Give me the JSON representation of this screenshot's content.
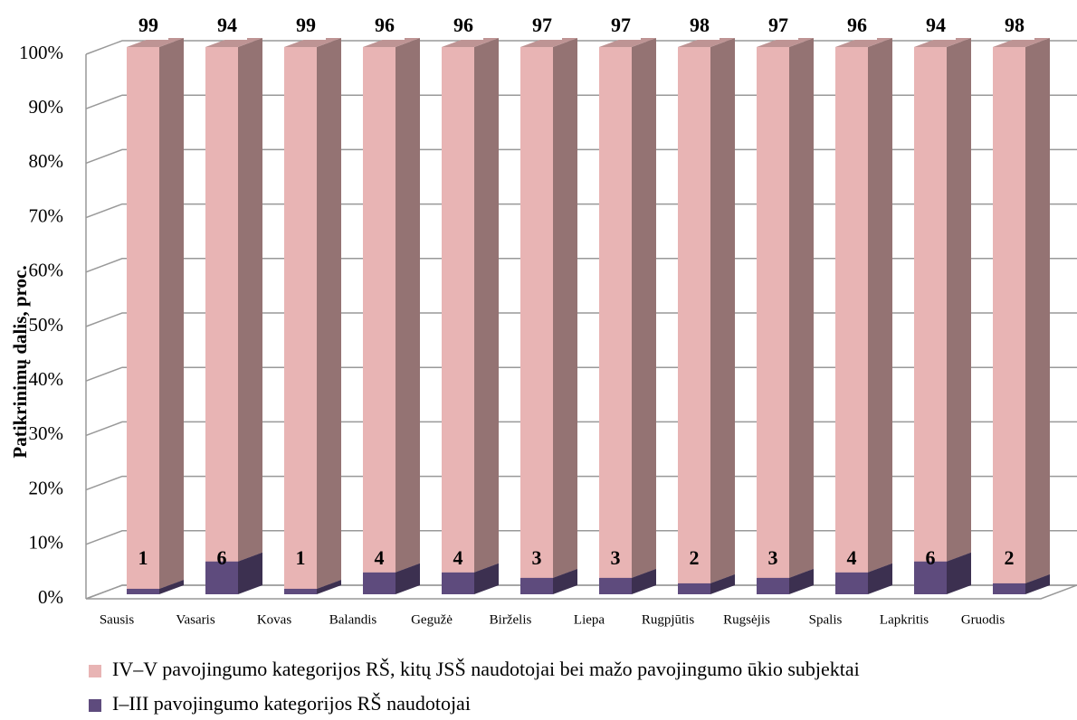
{
  "chart_data": {
    "type": "bar3d_stacked",
    "y_label": "Patikrinimų dalis, proc.",
    "categories": [
      "Sausis",
      "Vasaris",
      "Kovas",
      "Balandis",
      "Gegužė",
      "Birželis",
      "Liepa",
      "Rugpjūtis",
      "Rugsėjis",
      "Spalis",
      "Lapkritis",
      "Gruodis"
    ],
    "series": [
      {
        "name": "I–III pavojingumo kategorijos RŠ naudotojai",
        "color": "#5e4b7d",
        "values": [
          1,
          6,
          1,
          4,
          4,
          3,
          3,
          2,
          3,
          4,
          6,
          2
        ]
      },
      {
        "name": "IV–V pavojingumo kategorijos RŠ, kitų JSŠ naudotojai bei mažo pavojingumo ūkio subjektai",
        "color": "#e8b4b4",
        "values": [
          99,
          94,
          99,
          96,
          96,
          97,
          97,
          98,
          97,
          96,
          94,
          98
        ]
      }
    ],
    "legend": "bottom",
    "ylim": [
      0,
      100
    ],
    "yticks": [
      {
        "value": 0,
        "label": "0%"
      },
      {
        "value": 10,
        "label": "10%"
      },
      {
        "value": 20,
        "label": "20%"
      },
      {
        "value": 30,
        "label": "30%"
      },
      {
        "value": 40,
        "label": "40%"
      },
      {
        "value": 50,
        "label": "50%"
      },
      {
        "value": 60,
        "label": "60%"
      },
      {
        "value": 70,
        "label": "70%"
      },
      {
        "value": 80,
        "label": "80%"
      },
      {
        "value": 90,
        "label": "90%"
      },
      {
        "value": 100,
        "label": "100%"
      }
    ],
    "grid": true
  }
}
